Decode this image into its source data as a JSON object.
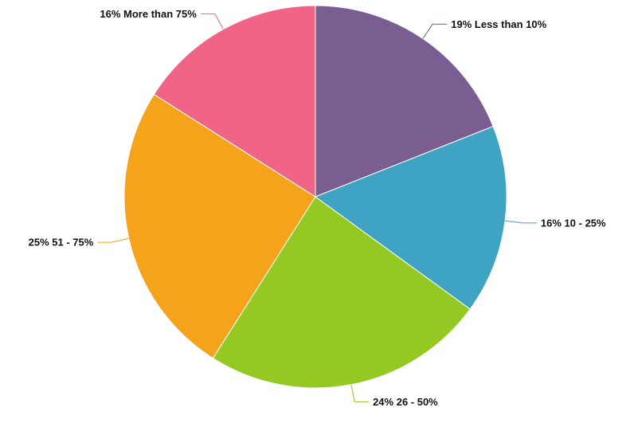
{
  "chart_data": {
    "type": "pie",
    "title": "",
    "slices": [
      {
        "label": "Less than 10%",
        "percent": 19,
        "display": "19% Less than 10%",
        "color": "#7B5E91"
      },
      {
        "label": "10 - 25%",
        "percent": 16,
        "display": "16% 10 - 25%",
        "color": "#3FA3C4"
      },
      {
        "label": "26 - 50%",
        "percent": 24,
        "display": "24% 26 - 50%",
        "color": "#94C823"
      },
      {
        "label": "51 - 75%",
        "percent": 25,
        "display": "25% 51 - 75%",
        "color": "#F5A31A"
      },
      {
        "label": "More than 75%",
        "percent": 16,
        "display": "16% More than 75%",
        "color": "#EF6487"
      }
    ],
    "start_angle": "12 o'clock",
    "direction": "clockwise",
    "legend": "none"
  }
}
